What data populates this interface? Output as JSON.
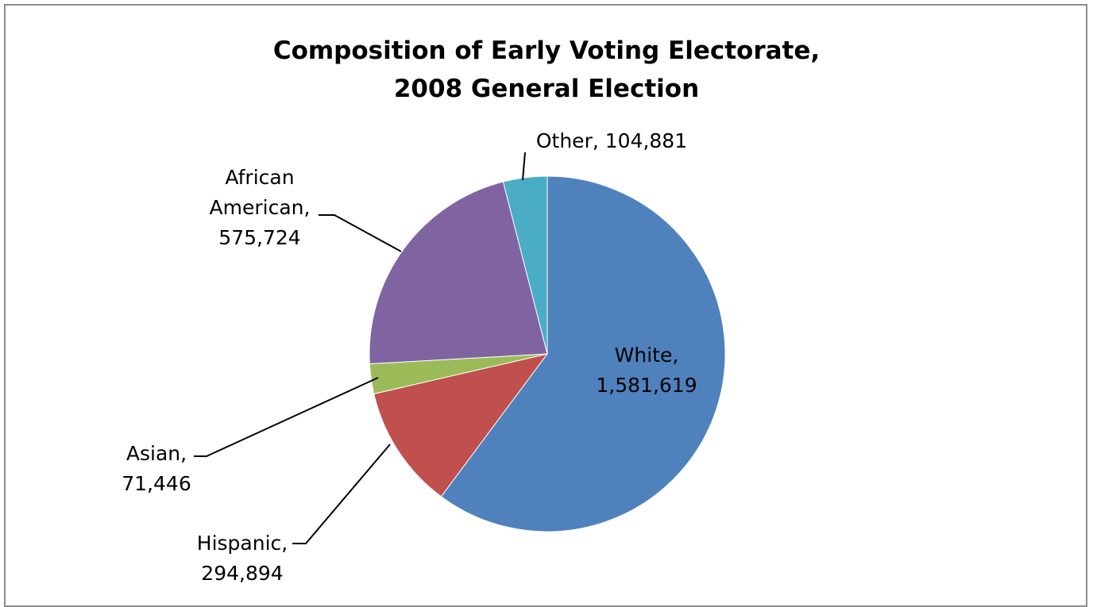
{
  "chart_data": {
    "type": "pie",
    "title_lines": [
      "Composition of Early Voting Electorate,",
      "2008 General Election"
    ],
    "categories": [
      "White",
      "Hispanic",
      "Asian",
      "African American",
      "Other"
    ],
    "values": [
      1581619,
      294894,
      71446,
      575724,
      104881
    ],
    "value_labels": [
      "1,581,619",
      "294,894",
      "71,446",
      "575,724",
      "104,881"
    ],
    "label_lines": [
      [
        "White,",
        "1,581,619"
      ],
      [
        "Hispanic,",
        "294,894"
      ],
      [
        "Asian,",
        "71,446"
      ],
      [
        "African",
        "American,",
        "575,724"
      ],
      [
        "Other, 104,881"
      ]
    ],
    "colors": [
      "#4f81bd",
      "#c0504d",
      "#9bbb59",
      "#8064a2",
      "#4bacc6"
    ],
    "start": "12 o'clock",
    "direction": "clockwise",
    "legend": "none",
    "data_labels": "category and value"
  }
}
